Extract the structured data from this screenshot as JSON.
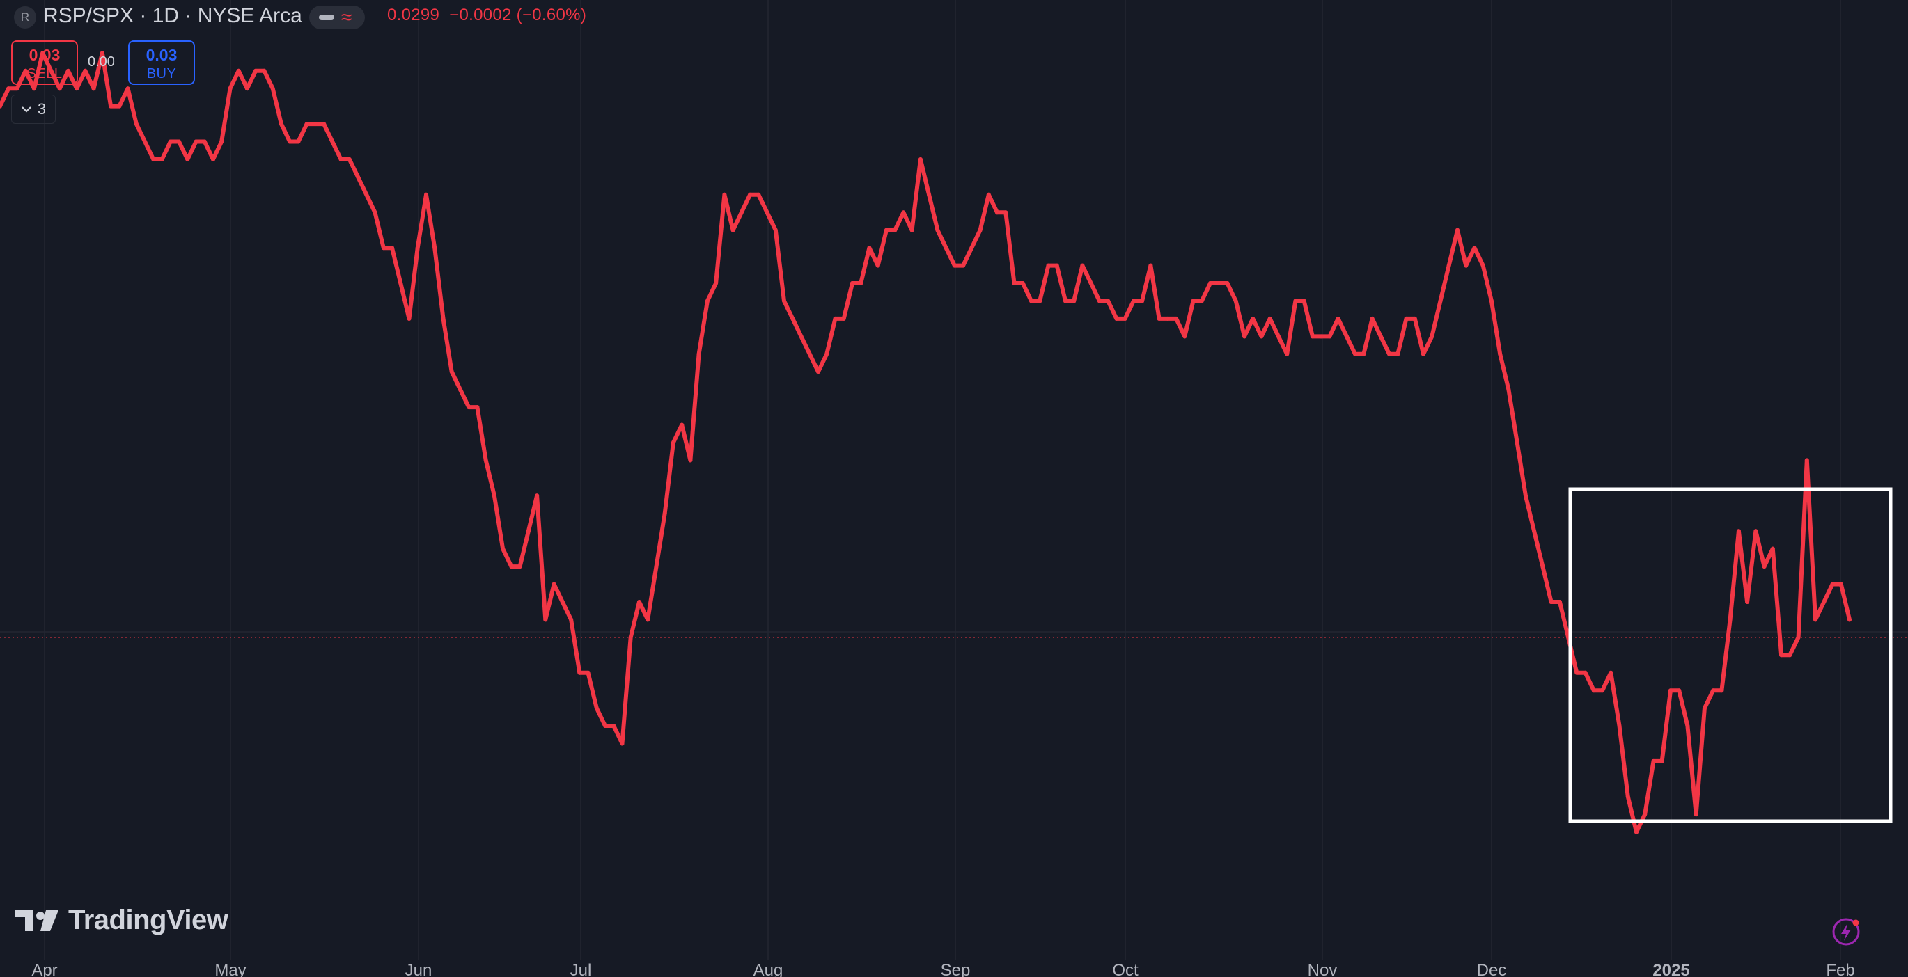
{
  "header": {
    "symbol_badge": "R",
    "title": "RSP/SPX · 1D · NYSE Arca",
    "price": "0.0299",
    "change": "−0.0002",
    "change_pct": "(−0.60%)"
  },
  "trade": {
    "sell_value": "0.03",
    "sell_label": "SELL",
    "spread": "0.00",
    "buy_value": "0.03",
    "buy_label": "BUY"
  },
  "indicators_toggle": {
    "count": "3",
    "icon": "chevron-down-icon"
  },
  "branding": {
    "logo_text": "TradingView"
  },
  "colors": {
    "background": "#161a25",
    "line": "#f23645",
    "grid": "#232632",
    "axis_text": "#b2b5be",
    "highlight_box": "#ffffff",
    "buy": "#2962ff"
  },
  "chart_data": {
    "type": "line",
    "series": [
      {
        "values": [
          0.0329,
          0.033,
          0.033,
          0.0331,
          0.033,
          0.0332,
          0.0331,
          0.033,
          0.0331,
          0.033,
          0.0331,
          0.033,
          0.0332,
          0.0329,
          0.0329,
          0.033,
          0.0328,
          0.0327,
          0.0326,
          0.0326,
          0.0327,
          0.0327,
          0.0326,
          0.0327,
          0.0327,
          0.0326,
          0.0327,
          0.033,
          0.0331,
          0.033,
          0.0331,
          0.0331,
          0.033,
          0.0328,
          0.0327,
          0.0327,
          0.0328,
          0.0328,
          0.0328,
          0.0327,
          0.0326,
          0.0326,
          0.0325,
          0.0324,
          0.0323,
          0.0321,
          0.0321,
          0.0319,
          0.0317,
          0.0321,
          0.0324,
          0.0321,
          0.0317,
          0.0314,
          0.0313,
          0.0312,
          0.0312,
          0.0309,
          0.0307,
          0.0304,
          0.0303,
          0.0303,
          0.0305,
          0.0307,
          0.03,
          0.0302,
          0.0301,
          0.03,
          0.0297,
          0.0297,
          0.0295,
          0.0294,
          0.0294,
          0.0293,
          0.0299,
          0.0301,
          0.03,
          0.0303,
          0.0306,
          0.031,
          0.0311,
          0.0309,
          0.0315,
          0.0318,
          0.0319,
          0.0324,
          0.0322,
          0.0323,
          0.0324,
          0.0324,
          0.0323,
          0.0322,
          0.0318,
          0.0317,
          0.0316,
          0.0315,
          0.0314,
          0.0315,
          0.0317,
          0.0317,
          0.0319,
          0.0319,
          0.0321,
          0.032,
          0.0322,
          0.0322,
          0.0323,
          0.0322,
          0.0326,
          0.0324,
          0.0322,
          0.0321,
          0.032,
          0.032,
          0.0321,
          0.0322,
          0.0324,
          0.0323,
          0.0323,
          0.0319,
          0.0319,
          0.0318,
          0.0318,
          0.032,
          0.032,
          0.0318,
          0.0318,
          0.032,
          0.0319,
          0.0318,
          0.0318,
          0.0317,
          0.0317,
          0.0318,
          0.0318,
          0.032,
          0.0317,
          0.0317,
          0.0317,
          0.0316,
          0.0318,
          0.0318,
          0.0319,
          0.0319,
          0.0319,
          0.0318,
          0.0316,
          0.0317,
          0.0316,
          0.0317,
          0.0316,
          0.0315,
          0.0318,
          0.0318,
          0.0316,
          0.0316,
          0.0316,
          0.0317,
          0.0316,
          0.0315,
          0.0315,
          0.0317,
          0.0316,
          0.0315,
          0.0315,
          0.0317,
          0.0317,
          0.0315,
          0.0316,
          0.0318,
          0.032,
          0.0322,
          0.032,
          0.0321,
          0.032,
          0.0318,
          0.0315,
          0.0313,
          0.031,
          0.0307,
          0.0305,
          0.0303,
          0.0301,
          0.0301,
          0.0299,
          0.0297,
          0.0297,
          0.0296,
          0.0296,
          0.0297,
          0.0294,
          0.029,
          0.0288,
          0.0289,
          0.0292,
          0.0292,
          0.0296,
          0.0296,
          0.0294,
          0.0289,
          0.0295,
          0.0296,
          0.0296,
          0.03,
          0.0305,
          0.0301,
          0.0305,
          0.0303,
          0.0304,
          0.0298,
          0.0298,
          0.0299,
          0.0309,
          0.03,
          0.0301,
          0.0302,
          0.0302,
          0.03
        ]
      }
    ],
    "x_labels": [
      "Apr",
      "May",
      "Jun",
      "Jul",
      "Aug",
      "Sep",
      "Oct",
      "Nov",
      "Dec",
      "2025",
      "Feb"
    ],
    "last_value": 0.0299,
    "grid": true,
    "annotation": "highlight-box-recent-period"
  }
}
